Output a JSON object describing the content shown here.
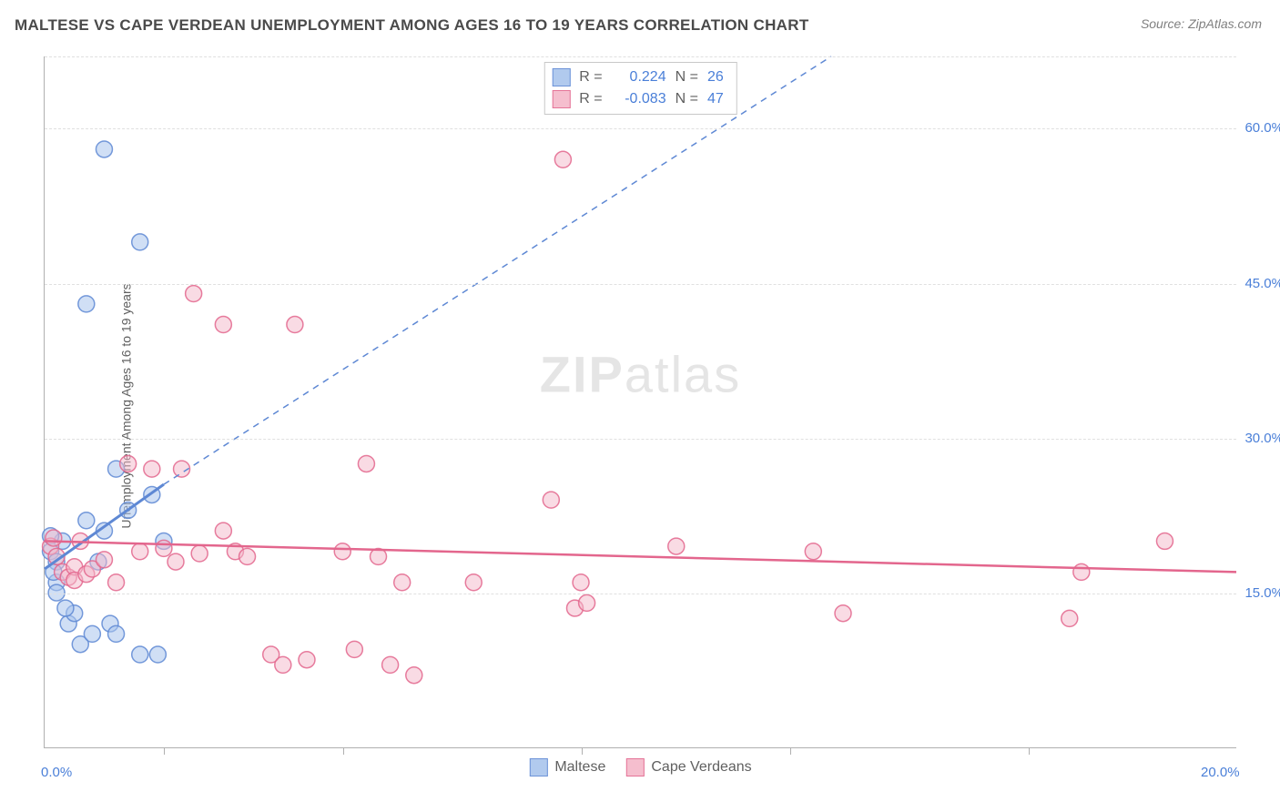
{
  "title": "MALTESE VS CAPE VERDEAN UNEMPLOYMENT AMONG AGES 16 TO 19 YEARS CORRELATION CHART",
  "source": "Source: ZipAtlas.com",
  "y_axis_label": "Unemployment Among Ages 16 to 19 years",
  "watermark_bold": "ZIP",
  "watermark_light": "atlas",
  "chart": {
    "type": "scatter",
    "background_color": "#ffffff",
    "grid_color": "#e0e0e0",
    "axis_color": "#b0b0b0",
    "tick_label_color": "#4a7fd8",
    "xlim": [
      0.0,
      20.0
    ],
    "ylim": [
      0.0,
      67.0
    ],
    "x_tick_labels": [
      {
        "label": "0.0%",
        "value": 0.0
      },
      {
        "label": "20.0%",
        "value": 20.0
      }
    ],
    "x_ticks_minor": [
      2.0,
      5.0,
      9.0,
      12.5,
      16.5
    ],
    "y_tick_labels": [
      {
        "label": "15.0%",
        "value": 15.0
      },
      {
        "label": "30.0%",
        "value": 30.0
      },
      {
        "label": "45.0%",
        "value": 45.0
      },
      {
        "label": "60.0%",
        "value": 60.0
      }
    ],
    "y_gridlines": [
      15.0,
      30.0,
      45.0,
      60.0,
      67.0
    ],
    "marker_radius": 9,
    "marker_stroke_width": 1.5,
    "series": [
      {
        "name": "Maltese",
        "legend_label": "Maltese",
        "fill_color": "#a9c5ed",
        "stroke_color": "#5e88d4",
        "fill_opacity": 0.55,
        "trend": {
          "x1": 0.0,
          "y1": 17.3,
          "x2_solid": 2.0,
          "y2_solid": 25.5,
          "x2_dash": 13.2,
          "y2_dash": 67.0,
          "solid_width": 3,
          "dash_width": 1.5
        },
        "stats": {
          "R_label": "R =",
          "R_value": "0.224",
          "N_label": "N =",
          "N_value": "26"
        },
        "points": [
          {
            "x": 1.0,
            "y": 58.0
          },
          {
            "x": 0.7,
            "y": 43.0
          },
          {
            "x": 1.6,
            "y": 49.0
          },
          {
            "x": 0.1,
            "y": 19.0
          },
          {
            "x": 0.2,
            "y": 18.0
          },
          {
            "x": 0.2,
            "y": 16.0
          },
          {
            "x": 0.2,
            "y": 15.0
          },
          {
            "x": 0.3,
            "y": 20.0
          },
          {
            "x": 0.4,
            "y": 12.0
          },
          {
            "x": 0.5,
            "y": 13.0
          },
          {
            "x": 0.6,
            "y": 10.0
          },
          {
            "x": 0.7,
            "y": 22.0
          },
          {
            "x": 0.8,
            "y": 11.0
          },
          {
            "x": 0.9,
            "y": 18.0
          },
          {
            "x": 1.0,
            "y": 21.0
          },
          {
            "x": 1.1,
            "y": 12.0
          },
          {
            "x": 1.2,
            "y": 27.0
          },
          {
            "x": 1.2,
            "y": 11.0
          },
          {
            "x": 1.4,
            "y": 23.0
          },
          {
            "x": 1.6,
            "y": 9.0
          },
          {
            "x": 1.8,
            "y": 24.5
          },
          {
            "x": 1.9,
            "y": 9.0
          },
          {
            "x": 2.0,
            "y": 20.0
          },
          {
            "x": 0.35,
            "y": 13.5
          },
          {
            "x": 0.15,
            "y": 17.0
          },
          {
            "x": 0.1,
            "y": 20.5
          }
        ]
      },
      {
        "name": "Cape Verdeans",
        "legend_label": "Cape Verdeans",
        "fill_color": "#f4b8c9",
        "stroke_color": "#e3668d",
        "fill_opacity": 0.5,
        "trend": {
          "x1": 0.0,
          "y1": 20.0,
          "x2_solid": 20.0,
          "y2_solid": 17.0,
          "solid_width": 2.5
        },
        "stats": {
          "R_label": "R =",
          "R_value": "-0.083",
          "N_label": "N =",
          "N_value": "47"
        },
        "points": [
          {
            "x": 0.1,
            "y": 19.5
          },
          {
            "x": 0.2,
            "y": 18.5
          },
          {
            "x": 0.3,
            "y": 17.0
          },
          {
            "x": 0.4,
            "y": 16.5
          },
          {
            "x": 0.5,
            "y": 17.5
          },
          {
            "x": 0.5,
            "y": 16.2
          },
          {
            "x": 0.6,
            "y": 20.0
          },
          {
            "x": 0.7,
            "y": 16.8
          },
          {
            "x": 0.8,
            "y": 17.3
          },
          {
            "x": 1.0,
            "y": 18.2
          },
          {
            "x": 1.2,
            "y": 16.0
          },
          {
            "x": 1.4,
            "y": 27.5
          },
          {
            "x": 1.6,
            "y": 19.0
          },
          {
            "x": 1.8,
            "y": 27.0
          },
          {
            "x": 2.0,
            "y": 19.3
          },
          {
            "x": 2.2,
            "y": 18.0
          },
          {
            "x": 2.3,
            "y": 27.0
          },
          {
            "x": 2.5,
            "y": 44.0
          },
          {
            "x": 3.0,
            "y": 41.0
          },
          {
            "x": 2.6,
            "y": 18.8
          },
          {
            "x": 3.0,
            "y": 21.0
          },
          {
            "x": 3.2,
            "y": 19.0
          },
          {
            "x": 3.4,
            "y": 18.5
          },
          {
            "x": 3.8,
            "y": 9.0
          },
          {
            "x": 4.0,
            "y": 8.0
          },
          {
            "x": 4.2,
            "y": 41.0
          },
          {
            "x": 4.4,
            "y": 8.5
          },
          {
            "x": 5.0,
            "y": 19.0
          },
          {
            "x": 5.2,
            "y": 9.5
          },
          {
            "x": 5.4,
            "y": 27.5
          },
          {
            "x": 5.6,
            "y": 18.5
          },
          {
            "x": 5.8,
            "y": 8.0
          },
          {
            "x": 6.0,
            "y": 16.0
          },
          {
            "x": 6.2,
            "y": 7.0
          },
          {
            "x": 7.2,
            "y": 16.0
          },
          {
            "x": 8.5,
            "y": 24.0
          },
          {
            "x": 8.7,
            "y": 57.0
          },
          {
            "x": 8.9,
            "y": 13.5
          },
          {
            "x": 9.0,
            "y": 16.0
          },
          {
            "x": 9.1,
            "y": 14.0
          },
          {
            "x": 10.6,
            "y": 19.5
          },
          {
            "x": 12.9,
            "y": 19.0
          },
          {
            "x": 13.4,
            "y": 13.0
          },
          {
            "x": 17.2,
            "y": 12.5
          },
          {
            "x": 17.4,
            "y": 17.0
          },
          {
            "x": 18.8,
            "y": 20.0
          },
          {
            "x": 0.15,
            "y": 20.3
          }
        ]
      }
    ]
  }
}
